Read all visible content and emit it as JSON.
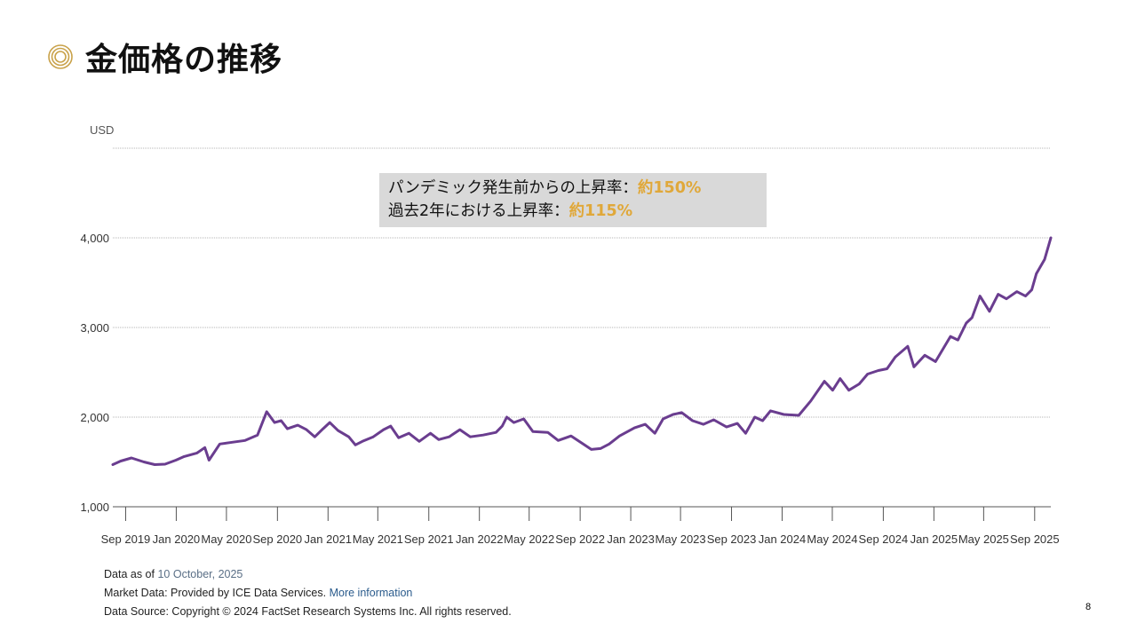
{
  "slide": {
    "title": "金価格の推移",
    "title_icon": "concentric-circles-icon",
    "page_number": "8"
  },
  "annotation": {
    "line1_text": "パンデミック発生前からの上昇率：",
    "line1_value": "約150%",
    "line2_text": "過去2年における上昇率：",
    "line2_value": "約115%",
    "highlight_color": "#e0a83a",
    "background_color": "#d9d9d9"
  },
  "footer": {
    "data_as_of_label": "Data as of",
    "data_as_of_value": "10 October, 2025",
    "market_data_label": "Market Data: Provided by ICE Data Services.",
    "market_data_link": "More information",
    "source_text": "Data Source: Copyright © 2024 FactSet Research Systems Inc. All rights reserved."
  },
  "chart_data": {
    "type": "line",
    "ylabel": "USD",
    "ylim": [
      1000,
      5000
    ],
    "yticks": [
      1000,
      2000,
      3000,
      4000
    ],
    "ytick_labels": [
      "1,000",
      "2,000",
      "3,000",
      "4,000"
    ],
    "grid": true,
    "xlabels": [
      "Sep 2019",
      "Jan 2020",
      "May 2020",
      "Sep 2020",
      "Jan 2021",
      "May 2021",
      "Sep 2021",
      "Jan 2022",
      "May 2022",
      "Sep 2022",
      "Jan 2023",
      "May 2023",
      "Sep 2023",
      "Jan 2024",
      "May 2024",
      "Sep 2024",
      "Jan 2025",
      "May 2025",
      "Sep 2025"
    ],
    "x_range": [
      "2019-08-01",
      "2025-10-10"
    ],
    "line_color": "#6a3d8f",
    "series": [
      {
        "points": [
          [
            "2019-08-01",
            1470
          ],
          [
            "2019-08-20",
            1510
          ],
          [
            "2019-09-15",
            1545
          ],
          [
            "2019-10-15",
            1500
          ],
          [
            "2019-11-10",
            1470
          ],
          [
            "2019-12-05",
            1475
          ],
          [
            "2019-12-31",
            1520
          ],
          [
            "2020-01-20",
            1560
          ],
          [
            "2020-02-20",
            1600
          ],
          [
            "2020-03-10",
            1660
          ],
          [
            "2020-03-20",
            1520
          ],
          [
            "2020-04-15",
            1700
          ],
          [
            "2020-05-15",
            1720
          ],
          [
            "2020-06-15",
            1740
          ],
          [
            "2020-07-15",
            1800
          ],
          [
            "2020-08-06",
            2060
          ],
          [
            "2020-08-25",
            1940
          ],
          [
            "2020-09-10",
            1960
          ],
          [
            "2020-09-25",
            1870
          ],
          [
            "2020-10-20",
            1910
          ],
          [
            "2020-11-10",
            1860
          ],
          [
            "2020-11-30",
            1780
          ],
          [
            "2020-12-20",
            1870
          ],
          [
            "2021-01-05",
            1940
          ],
          [
            "2021-01-25",
            1850
          ],
          [
            "2021-02-20",
            1780
          ],
          [
            "2021-03-08",
            1690
          ],
          [
            "2021-03-25",
            1730
          ],
          [
            "2021-04-20",
            1780
          ],
          [
            "2021-05-15",
            1860
          ],
          [
            "2021-06-01",
            1900
          ],
          [
            "2021-06-20",
            1770
          ],
          [
            "2021-07-15",
            1820
          ],
          [
            "2021-08-09",
            1730
          ],
          [
            "2021-09-05",
            1820
          ],
          [
            "2021-09-25",
            1750
          ],
          [
            "2021-10-20",
            1780
          ],
          [
            "2021-11-15",
            1860
          ],
          [
            "2021-12-10",
            1780
          ],
          [
            "2022-01-10",
            1800
          ],
          [
            "2022-02-10",
            1830
          ],
          [
            "2022-02-25",
            1900
          ],
          [
            "2022-03-08",
            2000
          ],
          [
            "2022-03-25",
            1940
          ],
          [
            "2022-04-18",
            1980
          ],
          [
            "2022-05-10",
            1840
          ],
          [
            "2022-06-15",
            1830
          ],
          [
            "2022-07-10",
            1740
          ],
          [
            "2022-08-10",
            1790
          ],
          [
            "2022-09-05",
            1710
          ],
          [
            "2022-09-28",
            1640
          ],
          [
            "2022-10-20",
            1650
          ],
          [
            "2022-11-10",
            1700
          ],
          [
            "2022-12-05",
            1790
          ],
          [
            "2023-01-10",
            1880
          ],
          [
            "2023-02-05",
            1920
          ],
          [
            "2023-02-28",
            1820
          ],
          [
            "2023-03-20",
            1980
          ],
          [
            "2023-04-13",
            2030
          ],
          [
            "2023-05-04",
            2050
          ],
          [
            "2023-05-30",
            1960
          ],
          [
            "2023-06-25",
            1920
          ],
          [
            "2023-07-20",
            1970
          ],
          [
            "2023-08-20",
            1890
          ],
          [
            "2023-09-15",
            1930
          ],
          [
            "2023-10-05",
            1820
          ],
          [
            "2023-10-27",
            2000
          ],
          [
            "2023-11-15",
            1960
          ],
          [
            "2023-12-04",
            2070
          ],
          [
            "2024-01-05",
            2030
          ],
          [
            "2024-02-10",
            2020
          ],
          [
            "2024-03-10",
            2180
          ],
          [
            "2024-04-12",
            2400
          ],
          [
            "2024-05-02",
            2300
          ],
          [
            "2024-05-20",
            2430
          ],
          [
            "2024-06-10",
            2300
          ],
          [
            "2024-07-05",
            2370
          ],
          [
            "2024-07-25",
            2480
          ],
          [
            "2024-08-20",
            2520
          ],
          [
            "2024-09-10",
            2540
          ],
          [
            "2024-09-30",
            2670
          ],
          [
            "2024-10-30",
            2790
          ],
          [
            "2024-11-14",
            2560
          ],
          [
            "2024-12-10",
            2690
          ],
          [
            "2025-01-05",
            2620
          ],
          [
            "2025-02-10",
            2900
          ],
          [
            "2025-02-28",
            2860
          ],
          [
            "2025-03-20",
            3050
          ],
          [
            "2025-04-03",
            3110
          ],
          [
            "2025-04-22",
            3350
          ],
          [
            "2025-05-15",
            3180
          ],
          [
            "2025-06-05",
            3370
          ],
          [
            "2025-06-25",
            3320
          ],
          [
            "2025-07-20",
            3400
          ],
          [
            "2025-08-10",
            3350
          ],
          [
            "2025-08-25",
            3420
          ],
          [
            "2025-09-05",
            3600
          ],
          [
            "2025-09-25",
            3760
          ],
          [
            "2025-10-10",
            4000
          ]
        ]
      }
    ]
  }
}
